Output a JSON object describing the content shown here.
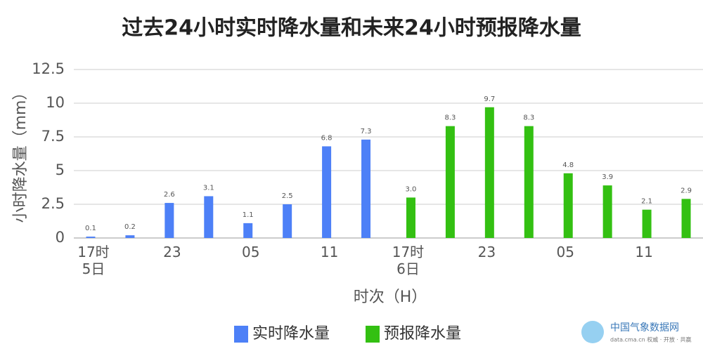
{
  "chart_data": {
    "type": "bar",
    "title": "过去24小时实时降水量和未来24小时预报降水量",
    "x_label": "时次（H）",
    "y_label": "小时降水量（mm）",
    "categories": [
      "17时\n5日",
      null,
      "23",
      null,
      "05",
      null,
      "11",
      null,
      "17时\n6日",
      null,
      "23",
      null,
      "05",
      null,
      "11",
      null
    ],
    "series": [
      {
        "name": "实时降水量",
        "color": "#4d80f7",
        "values": [
          0.1,
          0.2,
          2.6,
          3.1,
          1.1,
          2.5,
          6.8,
          7.3,
          null,
          null,
          null,
          null,
          null,
          null,
          null,
          null
        ]
      },
      {
        "name": "预报降水量",
        "color": "#33c012",
        "values": [
          null,
          null,
          null,
          null,
          null,
          null,
          null,
          null,
          3.0,
          8.3,
          9.7,
          8.3,
          4.8,
          3.9,
          2.1,
          2.9
        ],
        "value_labels": [
          null,
          null,
          null,
          null,
          null,
          null,
          null,
          null,
          "3.0",
          "8.3",
          "9.7",
          "8.3",
          "4.8",
          "3.9",
          "2.1",
          "2.9"
        ]
      }
    ],
    "ylim": [
      0,
      12.5
    ],
    "yticks": [
      0,
      2.5,
      5,
      7.5,
      10,
      12.5
    ],
    "grid": true,
    "legend": "bottom",
    "logo": {
      "name": "中国气象数据网",
      "slogan": "data.cma.cn 权威 · 开放 · 共赢"
    }
  }
}
